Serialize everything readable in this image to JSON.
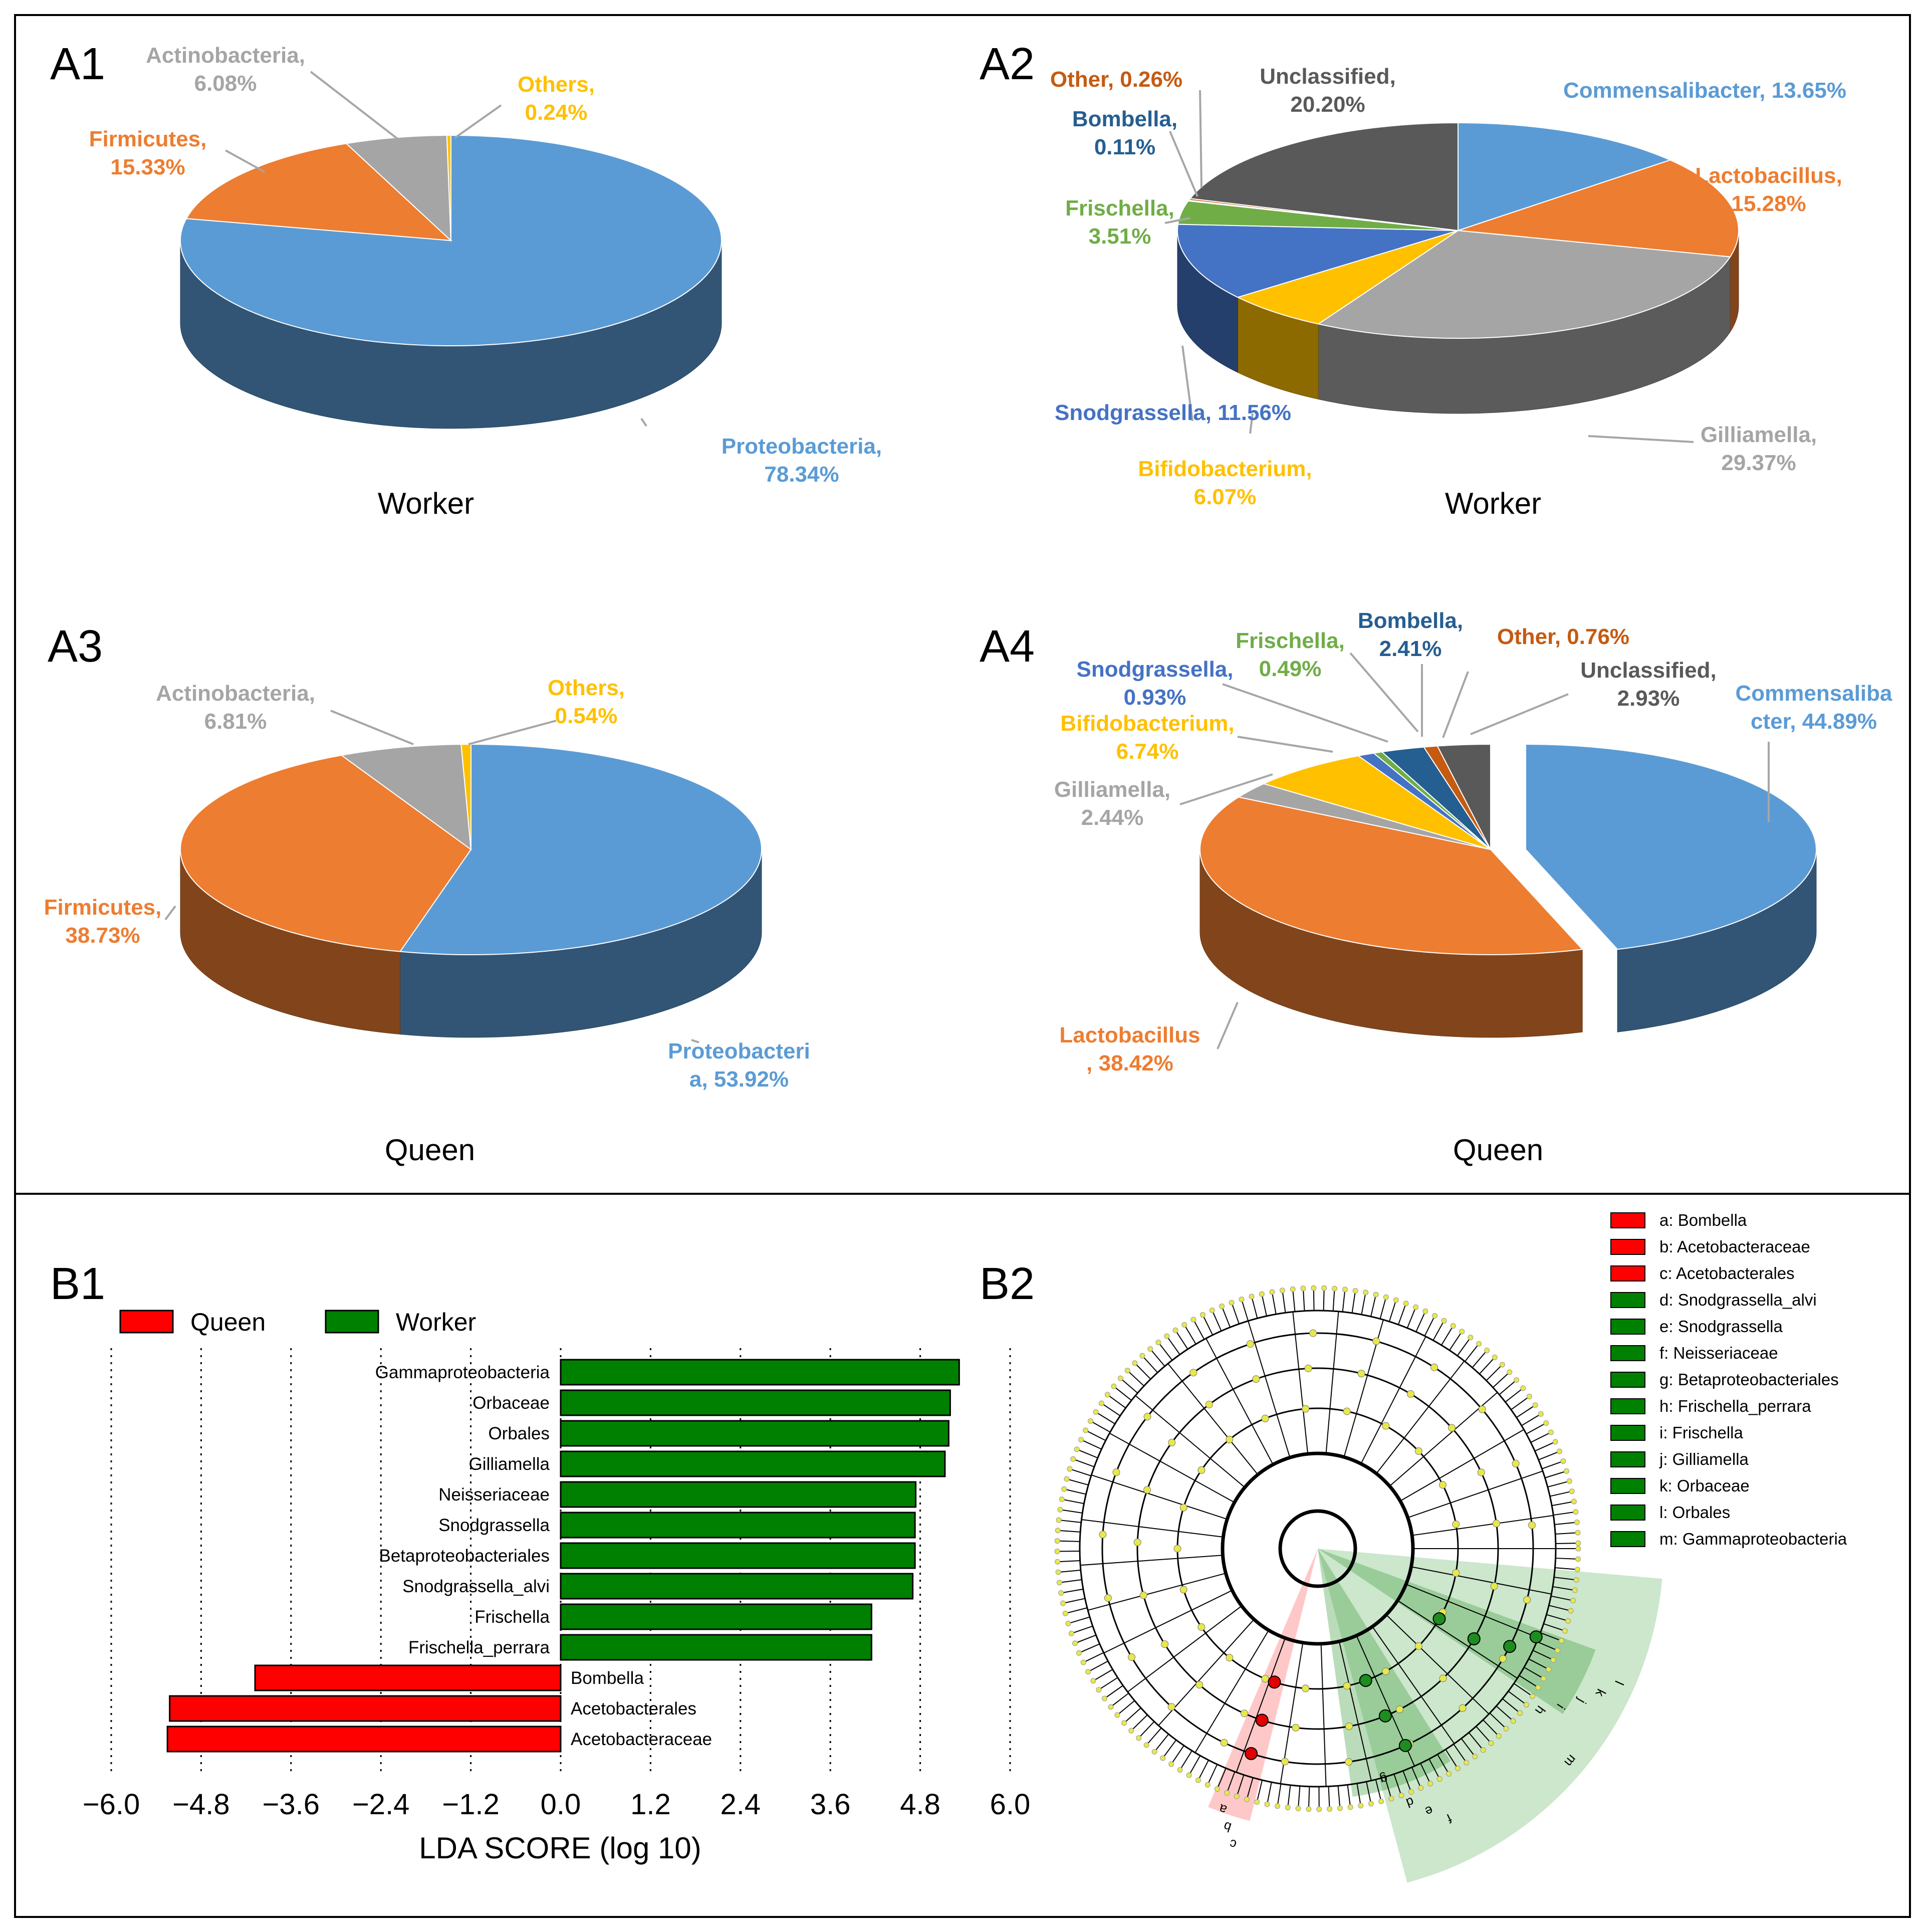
{
  "panels": {
    "a1": "A1",
    "a2": "A2",
    "a3": "A3",
    "a4": "A4",
    "b1": "B1",
    "b2": "B2"
  },
  "colors": {
    "proteo": "#5B9BD5",
    "firmi": "#ED7D31",
    "actino": "#A5A5A5",
    "others": "#FFC000",
    "bombella": "#255E91",
    "frisch": "#70AD47",
    "snod": "#4472C4",
    "unclass": "#595959",
    "otherbrown": "#C55A11",
    "queen": "#FF0000",
    "worker": "#008000"
  },
  "chart_data": [
    {
      "id": "A1",
      "type": "pie",
      "title": "Worker",
      "slices": [
        {
          "name": "Proteobacteria",
          "value": 78.34,
          "label_lines": [
            "Proteobacteria,",
            "78.34%"
          ],
          "color": "#5B9BD5"
        },
        {
          "name": "Firmicutes",
          "value": 15.33,
          "label_lines": [
            "Firmicutes,",
            "15.33%"
          ],
          "color": "#ED7D31"
        },
        {
          "name": "Actinobacteria",
          "value": 6.08,
          "label_lines": [
            "Actinobacteria,",
            "6.08%"
          ],
          "color": "#A5A5A5"
        },
        {
          "name": "Others",
          "value": 0.24,
          "label_lines": [
            "Others,",
            "0.24%"
          ],
          "color": "#FFC000"
        }
      ]
    },
    {
      "id": "A2",
      "type": "pie",
      "title": "Worker",
      "slices": [
        {
          "name": "Commensalibacter",
          "value": 13.65,
          "label_lines": [
            "Commensalibacter, 13.65%"
          ],
          "color": "#5B9BD5"
        },
        {
          "name": "Lactobacillus",
          "value": 15.28,
          "label_lines": [
            "Lactobacillus,",
            "15.28%"
          ],
          "color": "#ED7D31"
        },
        {
          "name": "Gilliamella",
          "value": 29.37,
          "label_lines": [
            "Gilliamella,",
            "29.37%"
          ],
          "color": "#A5A5A5"
        },
        {
          "name": "Bifidobacterium",
          "value": 6.07,
          "label_lines": [
            "Bifidobacterium,",
            "6.07%"
          ],
          "color": "#FFC000"
        },
        {
          "name": "Snodgrassella",
          "value": 11.56,
          "label_lines": [
            "Snodgrassella, 11.56%"
          ],
          "color": "#4472C4"
        },
        {
          "name": "Frischella",
          "value": 3.51,
          "label_lines": [
            "Frischella,",
            "3.51%"
          ],
          "color": "#70AD47"
        },
        {
          "name": "Bombella",
          "value": 0.11,
          "label_lines": [
            "Bombella,",
            "0.11%"
          ],
          "color": "#255E91"
        },
        {
          "name": "Other",
          "value": 0.26,
          "label_lines": [
            "Other, 0.26%"
          ],
          "color": "#C55A11"
        },
        {
          "name": "Unclassified",
          "value": 20.2,
          "label_lines": [
            "Unclassified,",
            "20.20%"
          ],
          "color": "#595959"
        }
      ]
    },
    {
      "id": "A3",
      "type": "pie",
      "title": "Queen",
      "slices": [
        {
          "name": "Proteobacteria",
          "value": 53.92,
          "label_lines": [
            "Proteobacteri",
            "a, 53.92%"
          ],
          "color": "#5B9BD5"
        },
        {
          "name": "Firmicutes",
          "value": 38.73,
          "label_lines": [
            "Firmicutes,",
            "38.73%"
          ],
          "color": "#ED7D31"
        },
        {
          "name": "Actinobacteria",
          "value": 6.81,
          "label_lines": [
            "Actinobacteria,",
            "6.81%"
          ],
          "color": "#A5A5A5"
        },
        {
          "name": "Others",
          "value": 0.54,
          "label_lines": [
            "Others,",
            "0.54%"
          ],
          "color": "#FFC000"
        }
      ]
    },
    {
      "id": "A4",
      "type": "pie",
      "title": "Queen",
      "slices": [
        {
          "name": "Commensalibacter",
          "value": 44.89,
          "label_lines": [
            "Commensaliba",
            "cter, 44.89%"
          ],
          "color": "#5B9BD5"
        },
        {
          "name": "Lactobacillus",
          "value": 38.42,
          "label_lines": [
            "Lactobacillus",
            ", 38.42%"
          ],
          "color": "#ED7D31"
        },
        {
          "name": "Gilliamella",
          "value": 2.44,
          "label_lines": [
            "Gilliamella,",
            "2.44%"
          ],
          "color": "#A5A5A5"
        },
        {
          "name": "Bifidobacterium",
          "value": 6.74,
          "label_lines": [
            "Bifidobacterium,",
            "6.74%"
          ],
          "color": "#FFC000"
        },
        {
          "name": "Snodgrassella",
          "value": 0.93,
          "label_lines": [
            "Snodgrassella,",
            "0.93%"
          ],
          "color": "#4472C4"
        },
        {
          "name": "Frischella",
          "value": 0.49,
          "label_lines": [
            "Frischella,",
            "0.49%"
          ],
          "color": "#70AD47"
        },
        {
          "name": "Bombella",
          "value": 2.41,
          "label_lines": [
            "Bombella,",
            "2.41%"
          ],
          "color": "#255E91"
        },
        {
          "name": "Other",
          "value": 0.76,
          "label_lines": [
            "Other, 0.76%"
          ],
          "color": "#C55A11"
        },
        {
          "name": "Unclassified",
          "value": 2.93,
          "label_lines": [
            "Unclassified,",
            "2.93%"
          ],
          "color": "#595959"
        }
      ]
    },
    {
      "id": "B1",
      "type": "bar",
      "orientation": "horizontal",
      "xlabel": "LDA SCORE (log 10)",
      "xlim": [
        -6.0,
        6.0
      ],
      "ticks": [
        -6.0,
        -4.8,
        -3.6,
        -2.4,
        -1.2,
        0.0,
        1.2,
        2.4,
        3.6,
        4.8,
        6.0
      ],
      "tick_labels": [
        "−6.0",
        "−4.8",
        "−3.6",
        "−2.4",
        "−1.2",
        "0.0",
        "1.2",
        "2.4",
        "3.6",
        "4.8",
        "6.0"
      ],
      "legend": [
        {
          "name": "Queen",
          "color": "#FF0000"
        },
        {
          "name": "Worker",
          "color": "#008000"
        }
      ],
      "bars": [
        {
          "name": "Gammaproteobacteria",
          "value": 5.32,
          "group": "Worker"
        },
        {
          "name": "Orbaceae",
          "value": 5.2,
          "group": "Worker"
        },
        {
          "name": "Orbales",
          "value": 5.18,
          "group": "Worker"
        },
        {
          "name": "Gilliamella",
          "value": 5.13,
          "group": "Worker"
        },
        {
          "name": "Neisseriaceae",
          "value": 4.74,
          "group": "Worker"
        },
        {
          "name": "Snodgrassella",
          "value": 4.73,
          "group": "Worker"
        },
        {
          "name": "Betaproteobacteriales",
          "value": 4.73,
          "group": "Worker"
        },
        {
          "name": "Snodgrassella_alvi",
          "value": 4.7,
          "group": "Worker"
        },
        {
          "name": "Frischella",
          "value": 4.15,
          "group": "Worker"
        },
        {
          "name": "Frischella_perrara",
          "value": 4.15,
          "group": "Worker"
        },
        {
          "name": "Bombella",
          "value": -4.08,
          "group": "Queen"
        },
        {
          "name": "Acetobacterales",
          "value": -5.22,
          "group": "Queen"
        },
        {
          "name": "Acetobacteraceae",
          "value": -5.25,
          "group": "Queen"
        }
      ]
    },
    {
      "id": "B2",
      "type": "cladogram",
      "legend": [
        {
          "text": "a: Bombella",
          "color": "#FF0000"
        },
        {
          "text": "b: Acetobacteraceae",
          "color": "#FF0000"
        },
        {
          "text": "c: Acetobacterales",
          "color": "#FF0000"
        },
        {
          "text": "d: Snodgrassella_alvi",
          "color": "#008000"
        },
        {
          "text": "e: Snodgrassella",
          "color": "#008000"
        },
        {
          "text": "f: Neisseriaceae",
          "color": "#008000"
        },
        {
          "text": "g: Betaproteobacteriales",
          "color": "#008000"
        },
        {
          "text": "h: Frischella_perrara",
          "color": "#008000"
        },
        {
          "text": "i: Frischella",
          "color": "#008000"
        },
        {
          "text": "j: Gilliamella",
          "color": "#008000"
        },
        {
          "text": "k: Orbaceae",
          "color": "#008000"
        },
        {
          "text": "l: Orbales",
          "color": "#008000"
        },
        {
          "text": "m: Gammaproteobacteria",
          "color": "#008000"
        }
      ],
      "sector_letters": [
        "a",
        "b",
        "c",
        "d",
        "e",
        "f",
        "g",
        "h",
        "i",
        "j",
        "k",
        "l",
        "m"
      ]
    }
  ]
}
